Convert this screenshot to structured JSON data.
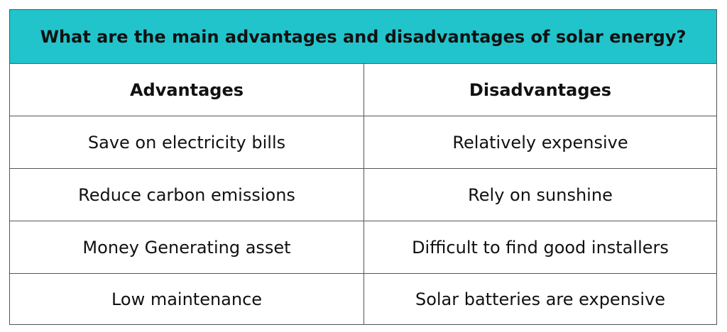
{
  "title": "What are the main advantages and disadvantages of solar energy?",
  "columns": {
    "advantages": "Advantages",
    "disadvantages": "Disadvantages"
  },
  "rows": [
    {
      "advantage": "Save on electricity bills",
      "disadvantage": "Relatively expensive"
    },
    {
      "advantage": "Reduce carbon emissions",
      "disadvantage": "Rely on sunshine"
    },
    {
      "advantage": "Money Generating asset",
      "disadvantage": "Difficult to find good installers"
    },
    {
      "advantage": "Low maintenance",
      "disadvantage": "Solar batteries are expensive"
    }
  ],
  "colors": {
    "title_background": "#22c4cc",
    "border": "#555555",
    "text": "#111111"
  }
}
